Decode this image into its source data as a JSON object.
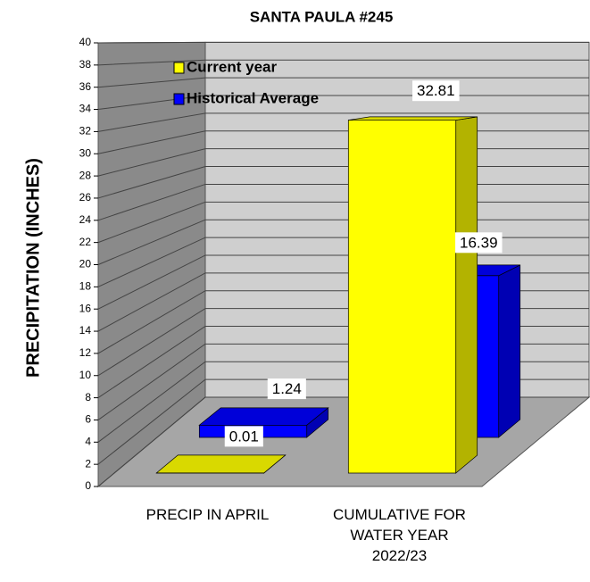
{
  "chart_data": {
    "type": "bar3d",
    "title": "SANTA PAULA #245",
    "y_label": "PRECIPITATION  (INCHES)",
    "categories": [
      "PRECIP IN APRIL",
      "CUMULATIVE FOR WATER YEAR 2022/23"
    ],
    "series": [
      {
        "name": "Current year",
        "color": "#ffff00",
        "values": [
          0.01,
          32.81
        ]
      },
      {
        "name": "Historical Average",
        "color": "#0000ff",
        "values": [
          1.24,
          16.39
        ]
      }
    ],
    "ylim": [
      0,
      40
    ],
    "yticks": [
      0,
      2,
      4,
      6,
      8,
      10,
      12,
      14,
      16,
      18,
      20,
      22,
      24,
      26,
      28,
      30,
      32,
      34,
      36,
      38,
      40
    ],
    "grid": true,
    "legend": "top-left"
  }
}
